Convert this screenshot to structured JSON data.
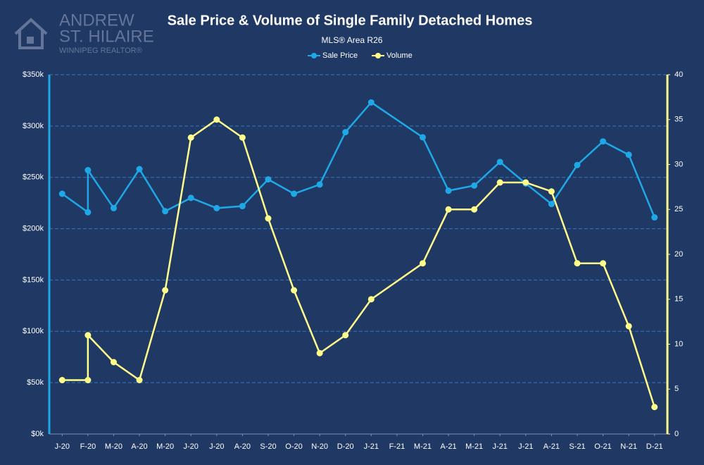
{
  "logo": {
    "line1": "ANDREW",
    "line2": "ST. HILAIRE",
    "line3": "WINNIPEG REALTOR®"
  },
  "chart_data": {
    "type": "line",
    "title": "Sale Price & Volume of Single Family Detached Homes",
    "subtitle": "MLS® Area R26",
    "x": [
      0,
      1,
      1,
      2,
      3,
      4,
      5,
      6,
      7,
      8,
      9,
      10,
      11,
      12,
      14,
      15,
      16,
      17,
      18,
      19,
      20,
      21,
      22,
      23
    ],
    "xlim": [
      -0.5,
      23.5
    ],
    "xticks": [
      {
        "value": 0,
        "label": "J-20"
      },
      {
        "value": 1,
        "label": "F-20"
      },
      {
        "value": 2,
        "label": "M-20"
      },
      {
        "value": 3,
        "label": "A-20"
      },
      {
        "value": 4,
        "label": "M-20"
      },
      {
        "value": 5,
        "label": "J-20"
      },
      {
        "value": 6,
        "label": "J-20"
      },
      {
        "value": 7,
        "label": "A-20"
      },
      {
        "value": 8,
        "label": "S-20"
      },
      {
        "value": 9,
        "label": "O-20"
      },
      {
        "value": 10,
        "label": "N-20"
      },
      {
        "value": 11,
        "label": "D-20"
      },
      {
        "value": 12,
        "label": "J-21"
      },
      {
        "value": 13,
        "label": "F-21"
      },
      {
        "value": 14,
        "label": "M-21"
      },
      {
        "value": 15,
        "label": "A-21"
      },
      {
        "value": 16,
        "label": "M-21"
      },
      {
        "value": 17,
        "label": "J-21"
      },
      {
        "value": 18,
        "label": "J-21"
      },
      {
        "value": 19,
        "label": "A-21"
      },
      {
        "value": 20,
        "label": "S-21"
      },
      {
        "value": 21,
        "label": "O-21"
      },
      {
        "value": 22,
        "label": "N-21"
      },
      {
        "value": 23,
        "label": "D-21"
      }
    ],
    "ylim": [
      0,
      350000
    ],
    "yticks": [
      {
        "value": 0,
        "label": "$0k"
      },
      {
        "value": 50000,
        "label": "$50k"
      },
      {
        "value": 100000,
        "label": "$100k"
      },
      {
        "value": 150000,
        "label": "$150k"
      },
      {
        "value": 200000,
        "label": "$200k"
      },
      {
        "value": 250000,
        "label": "$250k"
      },
      {
        "value": 300000,
        "label": "$300k"
      },
      {
        "value": 350000,
        "label": "$350k"
      }
    ],
    "y2lim": [
      0,
      40
    ],
    "y2ticks": [
      0,
      5,
      10,
      15,
      20,
      25,
      30,
      35,
      40
    ],
    "grid": true,
    "legend": "top",
    "series": [
      {
        "name": "Sale Price",
        "color": "#1fa8e6",
        "axis": "y",
        "values": [
          234000,
          216000,
          257000,
          220000,
          258000,
          217000,
          230000,
          220000,
          222000,
          248000,
          234000,
          243000,
          294000,
          323000,
          289000,
          237000,
          242000,
          265000,
          244000,
          224000,
          262000,
          285000,
          272000,
          211000
        ]
      },
      {
        "name": "Volume",
        "color": "#ffff8a",
        "axis": "y2",
        "values": [
          6,
          6,
          11,
          8,
          6,
          16,
          33,
          35,
          33,
          24,
          16,
          9,
          11,
          15,
          19,
          25,
          25,
          28,
          28,
          27,
          19,
          19,
          12,
          3
        ]
      }
    ]
  }
}
